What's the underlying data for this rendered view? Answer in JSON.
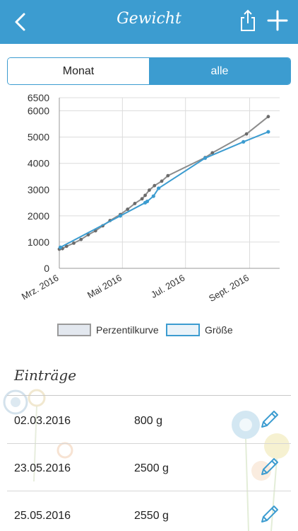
{
  "nav": {
    "title": "Gewicht",
    "back_icon": "chevron-left-icon",
    "share_icon": "share-icon",
    "add_icon": "plus-icon"
  },
  "colors": {
    "accent": "#3c9cd0",
    "percentile": "#8c8c8c",
    "size_series": "#3c9cd0"
  },
  "segments": [
    {
      "label": "Monat",
      "selected": false
    },
    {
      "label": "alle",
      "selected": true
    }
  ],
  "chart_data": {
    "type": "line",
    "yticks": [
      "0",
      "1000",
      "2000",
      "3000",
      "4000",
      "5000",
      "6000",
      "6500"
    ],
    "ylim": [
      0,
      6500
    ],
    "xticks": [
      {
        "label": "Mrz. 2016",
        "date": "2016-03-01"
      },
      {
        "label": "Mai 2016",
        "date": "2016-05-01"
      },
      {
        "label": "Jul. 2016",
        "date": "2016-07-01"
      },
      {
        "label": "Sept. 2016",
        "date": "2016-09-01"
      }
    ],
    "xlim": [
      "2016-03-01",
      "2016-09-30"
    ],
    "grid": true,
    "legend_position": "bottom",
    "series": [
      {
        "name": "Perzentilkurve",
        "style": "gray-dotted",
        "points": [
          {
            "date": "2016-03-01",
            "value": 730
          },
          {
            "date": "2016-03-04",
            "value": 750
          },
          {
            "date": "2016-03-08",
            "value": 840
          },
          {
            "date": "2016-03-15",
            "value": 960
          },
          {
            "date": "2016-03-22",
            "value": 1100
          },
          {
            "date": "2016-03-29",
            "value": 1280
          },
          {
            "date": "2016-04-05",
            "value": 1430
          },
          {
            "date": "2016-04-12",
            "value": 1620
          },
          {
            "date": "2016-04-19",
            "value": 1820
          },
          {
            "date": "2016-04-29",
            "value": 2050
          },
          {
            "date": "2016-05-06",
            "value": 2250
          },
          {
            "date": "2016-05-13",
            "value": 2470
          },
          {
            "date": "2016-05-20",
            "value": 2650
          },
          {
            "date": "2016-05-23",
            "value": 2780
          },
          {
            "date": "2016-05-27",
            "value": 2980
          },
          {
            "date": "2016-06-01",
            "value": 3150
          },
          {
            "date": "2016-06-08",
            "value": 3320
          },
          {
            "date": "2016-06-14",
            "value": 3530
          },
          {
            "date": "2016-07-20",
            "value": 4220
          },
          {
            "date": "2016-07-27",
            "value": 4400
          },
          {
            "date": "2016-08-29",
            "value": 5120
          },
          {
            "date": "2016-09-19",
            "value": 5780
          }
        ]
      },
      {
        "name": "Größe",
        "style": "blue-solid",
        "points": [
          {
            "date": "2016-03-02",
            "value": 800
          },
          {
            "date": "2016-04-29",
            "value": 2000
          },
          {
            "date": "2016-05-23",
            "value": 2500
          },
          {
            "date": "2016-05-25",
            "value": 2550
          },
          {
            "date": "2016-05-31",
            "value": 2750
          },
          {
            "date": "2016-06-05",
            "value": 3050
          },
          {
            "date": "2016-07-20",
            "value": 4200
          },
          {
            "date": "2016-08-26",
            "value": 4820
          },
          {
            "date": "2016-09-19",
            "value": 5200
          }
        ]
      }
    ]
  },
  "entries_section": {
    "title": "Einträge",
    "items": [
      {
        "date": "02.03.2016",
        "value": "800 g",
        "edit_icon": "pencil-icon"
      },
      {
        "date": "23.05.2016",
        "value": "2500 g",
        "edit_icon": "pencil-icon"
      },
      {
        "date": "25.05.2016",
        "value": "2550 g",
        "edit_icon": "pencil-icon"
      }
    ]
  }
}
